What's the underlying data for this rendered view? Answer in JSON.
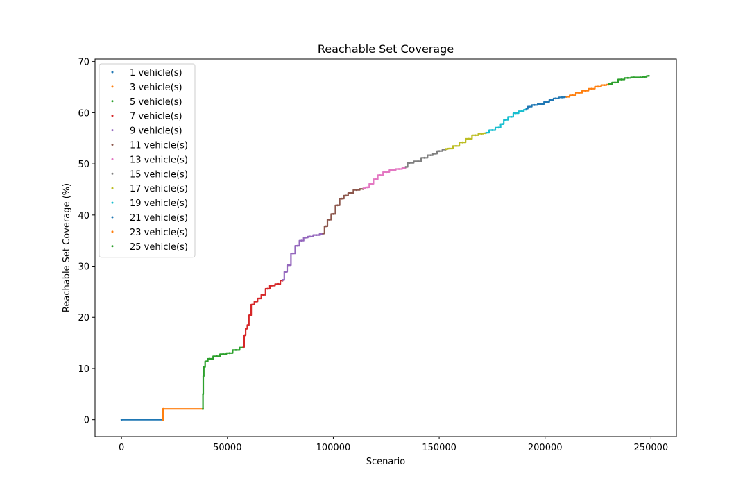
{
  "chart_data": {
    "type": "scatter",
    "title": "Reachable Set Coverage",
    "xlabel": "Scenario",
    "ylabel": "Reachable Set Coverage (%)",
    "xlim": [
      -12500,
      262000
    ],
    "ylim": [
      -3.3,
      70.5
    ],
    "xticks": [
      0,
      50000,
      100000,
      150000,
      200000,
      250000
    ],
    "yticks": [
      0,
      10,
      20,
      30,
      40,
      50,
      60,
      70
    ],
    "grid": false,
    "legend_position": "top-left",
    "series": [
      {
        "name": "1 vehicle(s)",
        "color": "#1f77b4",
        "points": [
          [
            0,
            0
          ],
          [
            19500,
            0
          ]
        ]
      },
      {
        "name": "3 vehicle(s)",
        "color": "#ff7f0e",
        "points": [
          [
            19600,
            0
          ],
          [
            19700,
            2.1
          ],
          [
            38400,
            2.1
          ]
        ]
      },
      {
        "name": "5 vehicle(s)",
        "color": "#2ca02c",
        "points": [
          [
            38450,
            2.1
          ],
          [
            38500,
            5
          ],
          [
            38700,
            8.5
          ],
          [
            39000,
            10.3
          ],
          [
            40000,
            11.4
          ],
          [
            41500,
            11.9
          ],
          [
            45000,
            12.4
          ],
          [
            48000,
            12.8
          ],
          [
            51000,
            13.0
          ],
          [
            54000,
            13.6
          ],
          [
            57500,
            14.1
          ]
        ]
      },
      {
        "name": "7 vehicle(s)",
        "color": "#d62728",
        "points": [
          [
            57600,
            14.2
          ],
          [
            58200,
            16.5
          ],
          [
            59000,
            17.8
          ],
          [
            59800,
            18.5
          ],
          [
            60500,
            20.4
          ],
          [
            62000,
            22.5
          ],
          [
            63500,
            23.1
          ],
          [
            65000,
            23.7
          ],
          [
            67000,
            24.4
          ],
          [
            69000,
            25.6
          ],
          [
            71000,
            26.2
          ],
          [
            74000,
            26.5
          ],
          [
            76000,
            27.2
          ]
        ]
      },
      {
        "name": "9 vehicle(s)",
        "color": "#9467bd",
        "points": [
          [
            76200,
            27.3
          ],
          [
            77500,
            28.9
          ],
          [
            79000,
            30.2
          ],
          [
            81000,
            32.5
          ],
          [
            83000,
            34.0
          ],
          [
            85000,
            35.0
          ],
          [
            87000,
            35.6
          ],
          [
            89000,
            35.8
          ],
          [
            92000,
            36.1
          ],
          [
            95000,
            36.3
          ]
        ]
      },
      {
        "name": "11 vehicle(s)",
        "color": "#8c564b",
        "points": [
          [
            95200,
            36.4
          ],
          [
            96500,
            37.8
          ],
          [
            98000,
            39.1
          ],
          [
            100000,
            40.2
          ],
          [
            102000,
            41.9
          ],
          [
            104000,
            43.2
          ],
          [
            106000,
            43.8
          ],
          [
            108000,
            44.3
          ],
          [
            111000,
            44.9
          ],
          [
            114000,
            45.1
          ]
        ]
      },
      {
        "name": "13 vehicle(s)",
        "color": "#e377c2",
        "points": [
          [
            114200,
            45.2
          ],
          [
            116000,
            45.4
          ],
          [
            118000,
            46.1
          ],
          [
            120000,
            47.0
          ],
          [
            122000,
            47.8
          ],
          [
            125000,
            48.4
          ],
          [
            128000,
            48.8
          ],
          [
            131000,
            49.0
          ],
          [
            134000,
            49.2
          ]
        ]
      },
      {
        "name": "15 vehicle(s)",
        "color": "#7f7f7f",
        "points": [
          [
            134200,
            49.4
          ],
          [
            136000,
            50.2
          ],
          [
            140000,
            50.5
          ],
          [
            143000,
            51.2
          ],
          [
            146000,
            51.7
          ],
          [
            148000,
            52.0
          ],
          [
            150000,
            52.5
          ],
          [
            153000,
            52.8
          ]
        ]
      },
      {
        "name": "17 vehicle(s)",
        "color": "#bcbd22",
        "points": [
          [
            153200,
            52.9
          ],
          [
            155000,
            53.0
          ],
          [
            158000,
            53.5
          ],
          [
            161000,
            54.2
          ],
          [
            164000,
            54.9
          ],
          [
            167000,
            55.6
          ],
          [
            170000,
            55.9
          ],
          [
            172000,
            56.0
          ]
        ]
      },
      {
        "name": "19 vehicle(s)",
        "color": "#17becf",
        "points": [
          [
            172200,
            56.1
          ],
          [
            175000,
            56.6
          ],
          [
            178000,
            57.1
          ],
          [
            180000,
            57.8
          ],
          [
            181000,
            58.6
          ],
          [
            184000,
            59.2
          ],
          [
            186000,
            59.9
          ],
          [
            189000,
            60.3
          ],
          [
            191000,
            60.6
          ]
        ]
      },
      {
        "name": "21 vehicle(s)",
        "color": "#1f77b4",
        "points": [
          [
            191200,
            60.8
          ],
          [
            192500,
            61.2
          ],
          [
            195000,
            61.5
          ],
          [
            198000,
            61.7
          ],
          [
            201000,
            62.1
          ],
          [
            203000,
            62.5
          ],
          [
            205000,
            62.8
          ],
          [
            208000,
            63.0
          ],
          [
            210000,
            63.1
          ]
        ]
      },
      {
        "name": "23 vehicle(s)",
        "color": "#ff7f0e",
        "points": [
          [
            210200,
            63.1
          ],
          [
            213000,
            63.4
          ],
          [
            216000,
            63.9
          ],
          [
            219000,
            64.3
          ],
          [
            222000,
            64.7
          ],
          [
            225000,
            65.1
          ],
          [
            228000,
            65.4
          ],
          [
            230000,
            65.5
          ]
        ]
      },
      {
        "name": "25 vehicle(s)",
        "color": "#2ca02c",
        "points": [
          [
            230200,
            65.6
          ],
          [
            233000,
            65.9
          ],
          [
            236000,
            66.5
          ],
          [
            239000,
            66.8
          ],
          [
            242000,
            66.9
          ],
          [
            245000,
            66.9
          ],
          [
            247000,
            67.0
          ],
          [
            249000,
            67.2
          ]
        ]
      }
    ]
  }
}
